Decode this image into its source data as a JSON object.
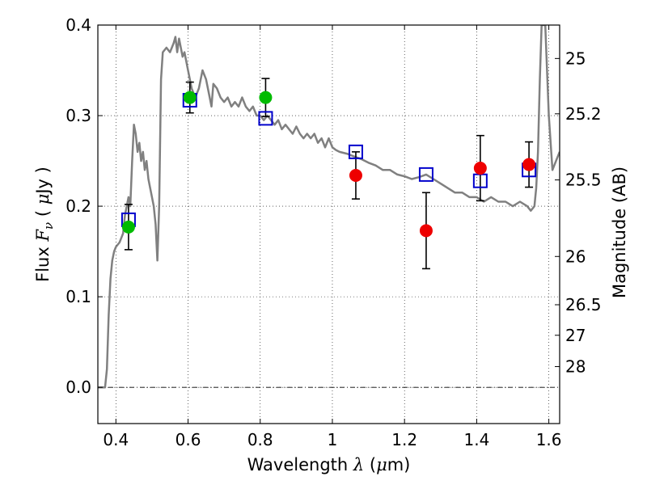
{
  "chart_data": {
    "type": "scatter",
    "xlabel": {
      "prefix": "Wavelength",
      "symbol": "λ",
      "unit_pre": "(",
      "unit_mu": "μ",
      "unit_post": "m)"
    },
    "ylabel": {
      "prefix": "Flux",
      "symbol": "F",
      "sub": "ν",
      "unit_pre": "(",
      "unit_mu": "μ",
      "unit_post": "Jy )"
    },
    "y2label": "Magnitude (AB)",
    "xlim": [
      0.35,
      1.63
    ],
    "ylim": [
      -0.04,
      0.4
    ],
    "grid": true,
    "x_ticks": [
      {
        "v": 0.4,
        "label": "0.4"
      },
      {
        "v": 0.6,
        "label": "0.6"
      },
      {
        "v": 0.8,
        "label": "0.8"
      },
      {
        "v": 1.0,
        "label": "1"
      },
      {
        "v": 1.2,
        "label": "1.2"
      },
      {
        "v": 1.4,
        "label": "1.4"
      },
      {
        "v": 1.6,
        "label": "1.6"
      }
    ],
    "y_ticks": [
      {
        "v": 0.0,
        "label": "0.0"
      },
      {
        "v": 0.1,
        "label": "0.1"
      },
      {
        "v": 0.2,
        "label": "0.2"
      },
      {
        "v": 0.3,
        "label": "0.3"
      },
      {
        "v": 0.4,
        "label": "0.4"
      }
    ],
    "y2_ticks": [
      {
        "mag": "25",
        "flux": 0.3631
      },
      {
        "mag": "25.2",
        "flux": 0.302
      },
      {
        "mag": "25.5",
        "flux": 0.229
      },
      {
        "mag": "26",
        "flux": 0.1445
      },
      {
        "mag": "26.5",
        "flux": 0.0912
      },
      {
        "mag": "27",
        "flux": 0.0575
      },
      {
        "mag": "28",
        "flux": 0.0229
      }
    ],
    "series": [
      {
        "kind": "model_spectrum",
        "color": "#808080",
        "points": [
          [
            0.35,
            0.0
          ],
          [
            0.37,
            0.0
          ],
          [
            0.375,
            0.02
          ],
          [
            0.38,
            0.08
          ],
          [
            0.385,
            0.12
          ],
          [
            0.39,
            0.14
          ],
          [
            0.395,
            0.15
          ],
          [
            0.4,
            0.155
          ],
          [
            0.41,
            0.16
          ],
          [
            0.42,
            0.17
          ],
          [
            0.425,
            0.19
          ],
          [
            0.43,
            0.2
          ],
          [
            0.435,
            0.21
          ],
          [
            0.44,
            0.2
          ],
          [
            0.445,
            0.25
          ],
          [
            0.45,
            0.29
          ],
          [
            0.455,
            0.28
          ],
          [
            0.46,
            0.26
          ],
          [
            0.465,
            0.27
          ],
          [
            0.47,
            0.25
          ],
          [
            0.475,
            0.26
          ],
          [
            0.48,
            0.24
          ],
          [
            0.485,
            0.25
          ],
          [
            0.49,
            0.23
          ],
          [
            0.495,
            0.22
          ],
          [
            0.5,
            0.21
          ],
          [
            0.505,
            0.2
          ],
          [
            0.51,
            0.18
          ],
          [
            0.515,
            0.14
          ],
          [
            0.52,
            0.2
          ],
          [
            0.525,
            0.34
          ],
          [
            0.53,
            0.37
          ],
          [
            0.54,
            0.375
          ],
          [
            0.55,
            0.37
          ],
          [
            0.56,
            0.38
          ],
          [
            0.565,
            0.387
          ],
          [
            0.57,
            0.37
          ],
          [
            0.575,
            0.385
          ],
          [
            0.58,
            0.375
          ],
          [
            0.585,
            0.365
          ],
          [
            0.59,
            0.37
          ],
          [
            0.595,
            0.36
          ],
          [
            0.6,
            0.35
          ],
          [
            0.61,
            0.33
          ],
          [
            0.62,
            0.32
          ],
          [
            0.63,
            0.33
          ],
          [
            0.64,
            0.35
          ],
          [
            0.65,
            0.34
          ],
          [
            0.66,
            0.32
          ],
          [
            0.665,
            0.31
          ],
          [
            0.67,
            0.335
          ],
          [
            0.68,
            0.33
          ],
          [
            0.69,
            0.32
          ],
          [
            0.7,
            0.315
          ],
          [
            0.71,
            0.32
          ],
          [
            0.72,
            0.31
          ],
          [
            0.73,
            0.315
          ],
          [
            0.74,
            0.31
          ],
          [
            0.75,
            0.32
          ],
          [
            0.76,
            0.31
          ],
          [
            0.77,
            0.305
          ],
          [
            0.78,
            0.31
          ],
          [
            0.79,
            0.3
          ],
          [
            0.8,
            0.3
          ],
          [
            0.81,
            0.295
          ],
          [
            0.82,
            0.3
          ],
          [
            0.83,
            0.295
          ],
          [
            0.84,
            0.29
          ],
          [
            0.85,
            0.295
          ],
          [
            0.86,
            0.285
          ],
          [
            0.87,
            0.29
          ],
          [
            0.88,
            0.285
          ],
          [
            0.89,
            0.28
          ],
          [
            0.9,
            0.288
          ],
          [
            0.91,
            0.28
          ],
          [
            0.92,
            0.275
          ],
          [
            0.93,
            0.28
          ],
          [
            0.94,
            0.275
          ],
          [
            0.95,
            0.28
          ],
          [
            0.96,
            0.27
          ],
          [
            0.97,
            0.275
          ],
          [
            0.98,
            0.265
          ],
          [
            0.99,
            0.275
          ],
          [
            1.0,
            0.265
          ],
          [
            1.01,
            0.262
          ],
          [
            1.02,
            0.26
          ],
          [
            1.04,
            0.258
          ],
          [
            1.06,
            0.255
          ],
          [
            1.08,
            0.252
          ],
          [
            1.1,
            0.248
          ],
          [
            1.12,
            0.245
          ],
          [
            1.14,
            0.24
          ],
          [
            1.16,
            0.24
          ],
          [
            1.18,
            0.235
          ],
          [
            1.2,
            0.233
          ],
          [
            1.22,
            0.23
          ],
          [
            1.24,
            0.232
          ],
          [
            1.26,
            0.235
          ],
          [
            1.28,
            0.23
          ],
          [
            1.3,
            0.225
          ],
          [
            1.32,
            0.22
          ],
          [
            1.34,
            0.215
          ],
          [
            1.36,
            0.215
          ],
          [
            1.38,
            0.21
          ],
          [
            1.4,
            0.21
          ],
          [
            1.42,
            0.205
          ],
          [
            1.44,
            0.21
          ],
          [
            1.46,
            0.205
          ],
          [
            1.48,
            0.205
          ],
          [
            1.5,
            0.2
          ],
          [
            1.52,
            0.205
          ],
          [
            1.54,
            0.2
          ],
          [
            1.55,
            0.195
          ],
          [
            1.56,
            0.2
          ],
          [
            1.565,
            0.22
          ],
          [
            1.57,
            0.26
          ],
          [
            1.575,
            0.34
          ],
          [
            1.58,
            0.4
          ],
          [
            1.59,
            0.4
          ],
          [
            1.6,
            0.3
          ],
          [
            1.61,
            0.24
          ],
          [
            1.62,
            0.25
          ],
          [
            1.63,
            0.26
          ]
        ]
      },
      {
        "kind": "model_photometry",
        "marker": "square-open",
        "color": "#0000cc",
        "points": [
          [
            0.435,
            0.185
          ],
          [
            0.605,
            0.317
          ],
          [
            0.815,
            0.297
          ],
          [
            1.065,
            0.26
          ],
          [
            1.26,
            0.235
          ],
          [
            1.41,
            0.228
          ],
          [
            1.545,
            0.24
          ]
        ]
      },
      {
        "kind": "observed",
        "marker": "circle",
        "color": "#00bb00",
        "points": [
          {
            "x": 0.435,
            "y": 0.177,
            "err": 0.025
          },
          {
            "x": 0.605,
            "y": 0.32,
            "err": 0.017
          },
          {
            "x": 0.815,
            "y": 0.32,
            "err": 0.021
          }
        ]
      },
      {
        "kind": "observed",
        "marker": "circle",
        "color": "#ee0000",
        "points": [
          {
            "x": 1.065,
            "y": 0.234,
            "err": 0.026
          },
          {
            "x": 1.26,
            "y": 0.173,
            "err": 0.042
          },
          {
            "x": 1.41,
            "y": 0.242,
            "err": 0.036
          },
          {
            "x": 1.545,
            "y": 0.246,
            "err": 0.025
          }
        ]
      }
    ]
  }
}
